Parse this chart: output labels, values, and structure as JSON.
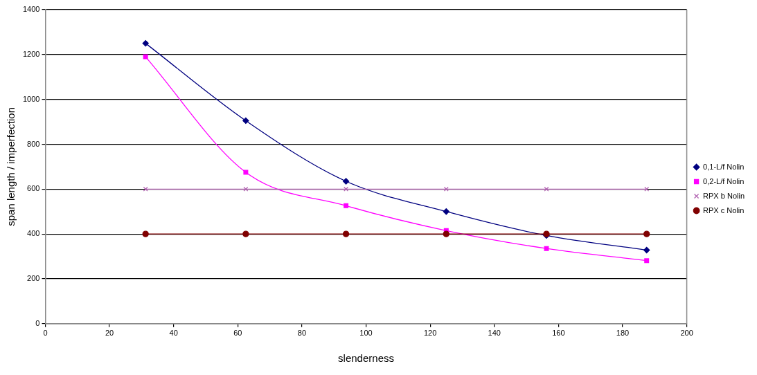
{
  "chart_data": {
    "type": "line",
    "xlabel": "slenderness",
    "ylabel": "span length / imperfection",
    "x": [
      31.25,
      62.5,
      93.75,
      125,
      156.25,
      187.5
    ],
    "series": [
      {
        "name": "0,1-L/f Nolin",
        "color": "#000080",
        "marker": "diamond",
        "values": [
          1250,
          905,
          635,
          500,
          393,
          328
        ]
      },
      {
        "name": "0,2-L/f Nolin",
        "color": "#ff00ff",
        "marker": "square",
        "values": [
          1190,
          675,
          526,
          415,
          335,
          281
        ]
      },
      {
        "name": "RPX b Nolin",
        "color": "#b060b0",
        "marker": "cross",
        "values": [
          600,
          600,
          600,
          600,
          600,
          600
        ]
      },
      {
        "name": "RPX c Nolin",
        "color": "#800000",
        "marker": "circle",
        "values": [
          400,
          400,
          400,
          400,
          400,
          400
        ]
      }
    ],
    "xlim": [
      0,
      200
    ],
    "xticks": [
      0,
      20,
      40,
      60,
      80,
      100,
      120,
      140,
      160,
      180,
      200
    ],
    "ylim": [
      0,
      1400
    ],
    "yticks": [
      0,
      200,
      400,
      600,
      800,
      1000,
      1200,
      1400
    ],
    "grid": "y",
    "legend": "right",
    "line_style": "solid"
  }
}
